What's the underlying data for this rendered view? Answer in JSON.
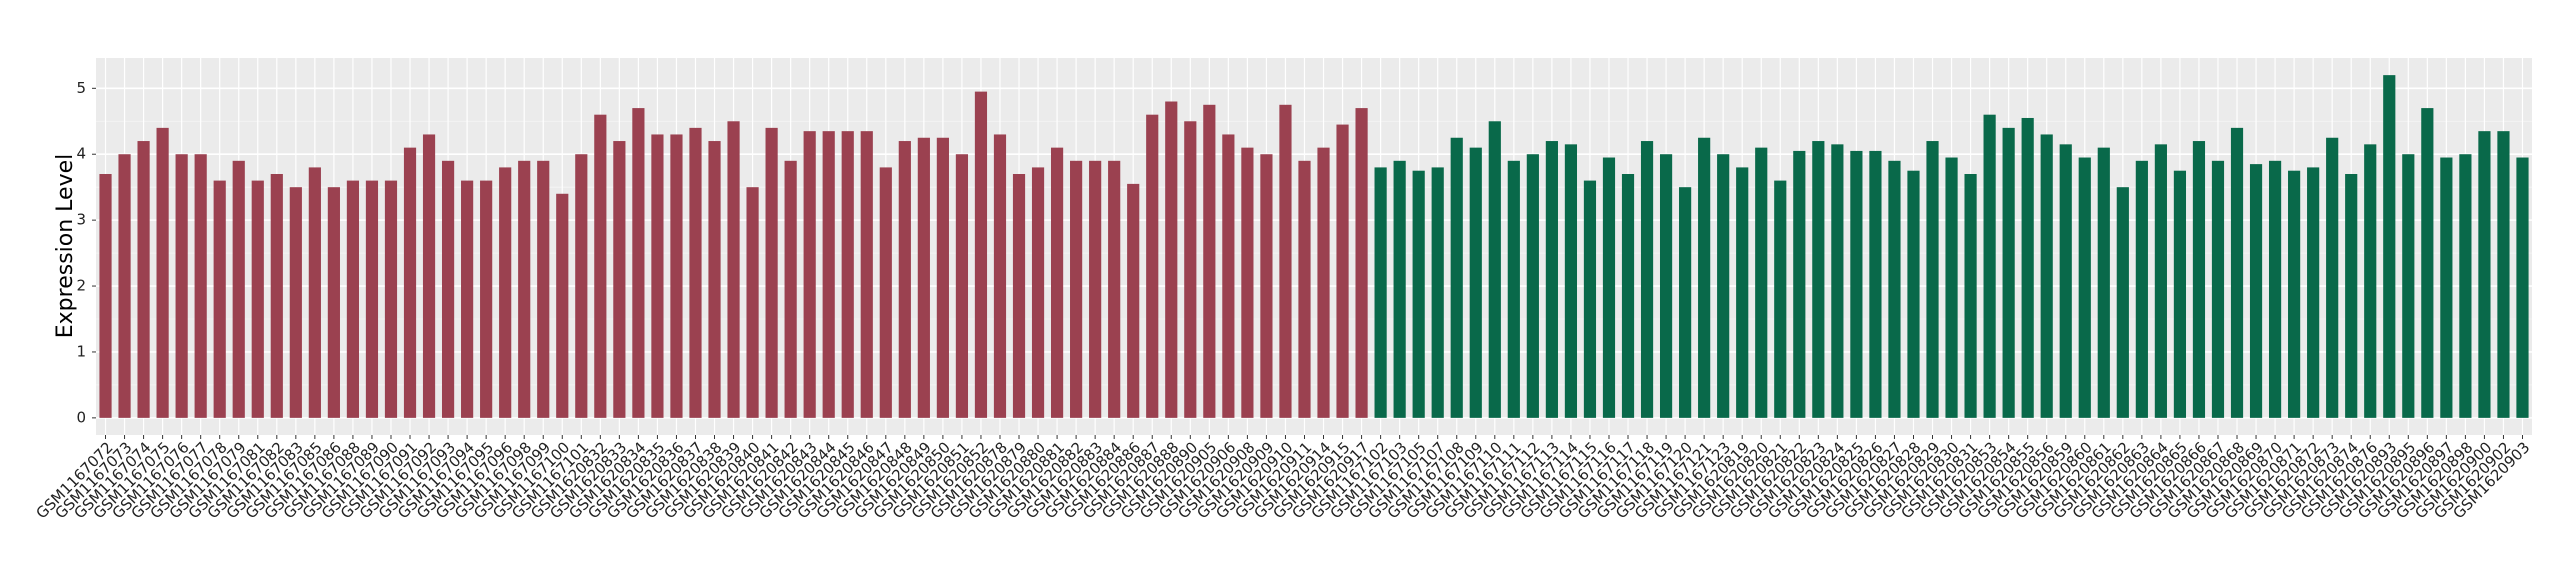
{
  "chart_data": {
    "type": "bar",
    "y_label": "Expression Level",
    "categories": [
      "GSM1167072",
      "GSM1167073",
      "GSM1167074",
      "GSM1167075",
      "GSM1167076",
      "GSM1167077",
      "GSM1167078",
      "GSM1167079",
      "GSM1167081",
      "GSM1167082",
      "GSM1167083",
      "GSM1167085",
      "GSM1167086",
      "GSM1167088",
      "GSM1167089",
      "GSM1167090",
      "GSM1167091",
      "GSM1167092",
      "GSM1167093",
      "GSM1167094",
      "GSM1167095",
      "GSM1167096",
      "GSM1167098",
      "GSM1167099",
      "GSM1167100",
      "GSM1167101",
      "GSM1620832",
      "GSM1620833",
      "GSM1620834",
      "GSM1620835",
      "GSM1620836",
      "GSM1620837",
      "GSM1620838",
      "GSM1620839",
      "GSM1620840",
      "GSM1620841",
      "GSM1620842",
      "GSM1620843",
      "GSM1620844",
      "GSM1620845",
      "GSM1620846",
      "GSM1620847",
      "GSM1620848",
      "GSM1620849",
      "GSM1620850",
      "GSM1620851",
      "GSM1620852",
      "GSM1620878",
      "GSM1620879",
      "GSM1620880",
      "GSM1620881",
      "GSM1620882",
      "GSM1620883",
      "GSM1620884",
      "GSM1620886",
      "GSM1620887",
      "GSM1620888",
      "GSM1620890",
      "GSM1620905",
      "GSM1620906",
      "GSM1620908",
      "GSM1620909",
      "GSM1620910",
      "GSM1620911",
      "GSM1620914",
      "GSM1620915",
      "GSM1620917",
      "GSM1167102",
      "GSM1167103",
      "GSM1167105",
      "GSM1167107",
      "GSM1167108",
      "GSM1167109",
      "GSM1167110",
      "GSM1167111",
      "GSM1167112",
      "GSM1167113",
      "GSM1167114",
      "GSM1167115",
      "GSM1167116",
      "GSM1167117",
      "GSM1167118",
      "GSM1167119",
      "GSM1167120",
      "GSM1167121",
      "GSM1167123",
      "GSM1620819",
      "GSM1620820",
      "GSM1620821",
      "GSM1620822",
      "GSM1620823",
      "GSM1620824",
      "GSM1620825",
      "GSM1620826",
      "GSM1620827",
      "GSM1620828",
      "GSM1620829",
      "GSM1620830",
      "GSM1620831",
      "GSM1620853",
      "GSM1620854",
      "GSM1620855",
      "GSM1620856",
      "GSM1620859",
      "GSM1620860",
      "GSM1620861",
      "GSM1620862",
      "GSM1620863",
      "GSM1620864",
      "GSM1620865",
      "GSM1620866",
      "GSM1620867",
      "GSM1620868",
      "GSM1620869",
      "GSM1620870",
      "GSM1620871",
      "GSM1620872",
      "GSM1620873",
      "GSM1620874",
      "GSM1620876",
      "GSM1620893",
      "GSM1620895",
      "GSM1620896",
      "GSM1620897",
      "GSM1620898",
      "GSM1620900",
      "GSM1620902",
      "GSM1620903"
    ],
    "series": [
      {
        "color": "#9b4150",
        "values": [
          3.7,
          4.0,
          4.2,
          4.4,
          4.0,
          4.0,
          3.6,
          3.9,
          3.6,
          3.7,
          3.5,
          3.8,
          3.5,
          3.6,
          3.6,
          3.6,
          4.1,
          4.3,
          3.9,
          3.6,
          3.6,
          3.8,
          3.9,
          3.9,
          3.4,
          4.0,
          4.6,
          4.2,
          4.7,
          4.3,
          4.3,
          4.4,
          4.2,
          4.5,
          3.5,
          4.4,
          3.9,
          4.35,
          4.35,
          4.35,
          4.35,
          3.8,
          4.2,
          4.25,
          4.25,
          4.0,
          4.95,
          4.3,
          3.7,
          3.8,
          4.1,
          3.9,
          3.9,
          3.9,
          3.55,
          4.6,
          4.8,
          4.5,
          4.75,
          4.3,
          4.1,
          4.0,
          4.75,
          3.9,
          4.1,
          4.45,
          4.7,
          null,
          null,
          null,
          null,
          null,
          null,
          null,
          null,
          null,
          null,
          null,
          null,
          null,
          null,
          null,
          null,
          null,
          null,
          null,
          null,
          null,
          null,
          null,
          null,
          null,
          null,
          null,
          null,
          null,
          null,
          null,
          null,
          null,
          null,
          null,
          null,
          null,
          null,
          null,
          null,
          null,
          null,
          null,
          null,
          null,
          null,
          null,
          null,
          null,
          null,
          null,
          null,
          null,
          null,
          null,
          null,
          null,
          null,
          null,
          null,
          null
        ]
      },
      {
        "color": "#09694a",
        "values": [
          null,
          null,
          null,
          null,
          null,
          null,
          null,
          null,
          null,
          null,
          null,
          null,
          null,
          null,
          null,
          null,
          null,
          null,
          null,
          null,
          null,
          null,
          null,
          null,
          null,
          null,
          null,
          null,
          null,
          null,
          null,
          null,
          null,
          null,
          null,
          null,
          null,
          null,
          null,
          null,
          null,
          null,
          null,
          null,
          null,
          null,
          null,
          null,
          null,
          null,
          null,
          null,
          null,
          null,
          null,
          null,
          null,
          null,
          null,
          null,
          null,
          null,
          null,
          null,
          null,
          null,
          null,
          3.8,
          3.9,
          3.75,
          3.8,
          4.25,
          4.1,
          4.5,
          3.9,
          4.0,
          4.2,
          4.15,
          3.6,
          3.95,
          3.7,
          4.2,
          4.0,
          3.5,
          4.25,
          4.0,
          3.8,
          4.1,
          3.6,
          4.05,
          4.2,
          4.15,
          4.05,
          4.05,
          3.9,
          3.75,
          4.2,
          3.95,
          3.7,
          4.6,
          4.4,
          4.55,
          4.3,
          4.15,
          3.95,
          4.1,
          3.5,
          3.9,
          4.15,
          3.75,
          4.2,
          3.9,
          4.4,
          3.85,
          3.9,
          3.75,
          3.8,
          4.25,
          3.7,
          4.15,
          5.2,
          4.0,
          4.7,
          3.95,
          4.0,
          4.35,
          4.35,
          3.95
        ]
      }
    ],
    "ylim": [
      -0.26,
      5.46
    ],
    "yticks": [
      0,
      1,
      2,
      3,
      4,
      5
    ],
    "grid": true
  }
}
